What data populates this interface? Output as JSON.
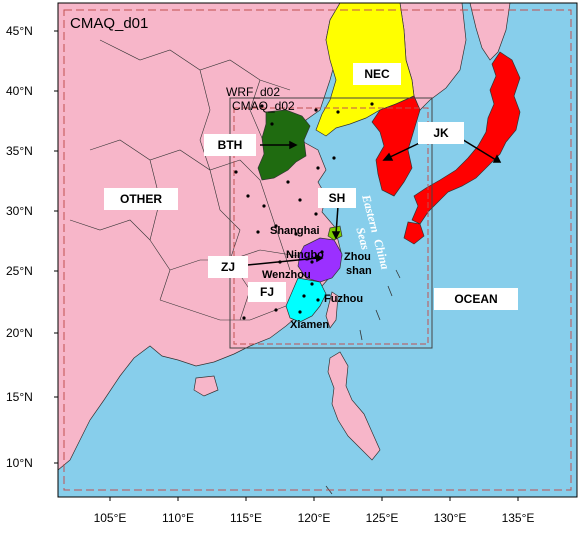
{
  "title": "CMAQ_d01",
  "colors": {
    "ocean": "#87CEEB",
    "land": "#F7B6C9",
    "nec": "#FFFF00",
    "jk": "#FF0000",
    "bth": "#1F6B10",
    "zj": "#9B30FF",
    "fj": "#00FFFF",
    "sh": "#7CCD00",
    "frame_dash": "#C05050"
  },
  "axes": {
    "lat_ticks": [
      "45°N",
      "40°N",
      "35°N",
      "30°N",
      "25°N",
      "20°N",
      "15°N",
      "10°N"
    ],
    "lon_ticks": [
      "105°E",
      "110°E",
      "115°E",
      "120°E",
      "125°E",
      "130°E",
      "135°E"
    ]
  },
  "domains": {
    "wrf_d02": "WRF_d02",
    "cmaq_d02": "CMAQ_d02"
  },
  "regions": {
    "nec": "NEC",
    "bth": "BTH",
    "jk": "JK",
    "other": "OTHER",
    "sh": "SH",
    "zj": "ZJ",
    "fj": "FJ",
    "ocean": "OCEAN"
  },
  "cities": {
    "shanghai": "Shanghai",
    "ningbo": "Ningbo",
    "zhou": "Zhou",
    "shan": "shan",
    "wenzhou": "Wenzhou",
    "fuzhou": "Fuzhou",
    "xiamen": "Xiamen"
  },
  "sea_name": [
    "Eastern",
    "China",
    "Seas"
  ]
}
